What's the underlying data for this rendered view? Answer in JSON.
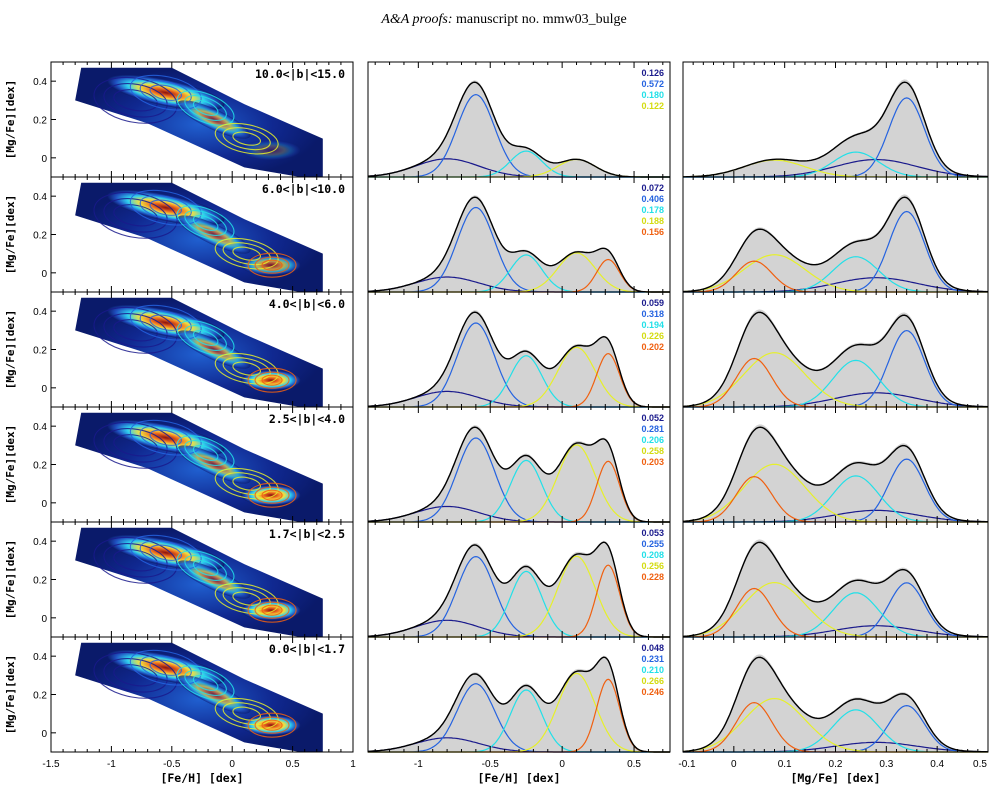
{
  "header": {
    "journal": "A&A proofs:",
    "manuscript": "manuscript no. mmw03_bulge"
  },
  "axes": {
    "left_xlabel": "[Fe/H] [dex]",
    "mid_xlabel": "[Fe/H] [dex]",
    "right_xlabel": "[Mg/Fe] [dex]",
    "left_ylabel": "[Mg/Fe][dex]",
    "left_xticks": [
      "-1.5",
      "-1",
      "-0.5",
      "0",
      "0.5",
      "1"
    ],
    "left_yticks": [
      "0",
      "0.2",
      "0.4"
    ],
    "mid_xticks": [
      "-1",
      "-0.5",
      "0",
      "0.5"
    ],
    "right_xticks": [
      "-0.1",
      "0",
      "0.1",
      "0.2",
      "0.3",
      "0.4",
      "0.5"
    ]
  },
  "colors": {
    "c1": "#1a1a8c",
    "c2": "#2563e0",
    "c3": "#22e0e8",
    "c4": "#e6f02a",
    "c5": "#f06010"
  },
  "rows": [
    {
      "label": "10.0<|b|<15.0",
      "fractions": [
        "0.126",
        "0.572",
        "0.180",
        "0.122"
      ]
    },
    {
      "label": "6.0<|b|<10.0",
      "fractions": [
        "0.072",
        "0.406",
        "0.178",
        "0.188",
        "0.156"
      ]
    },
    {
      "label": "4.0<|b|<6.0",
      "fractions": [
        "0.059",
        "0.318",
        "0.194",
        "0.226",
        "0.202"
      ]
    },
    {
      "label": "2.5<|b|<4.0",
      "fractions": [
        "0.052",
        "0.281",
        "0.206",
        "0.258",
        "0.203"
      ]
    },
    {
      "label": "1.7<|b|<2.5",
      "fractions": [
        "0.053",
        "0.255",
        "0.208",
        "0.256",
        "0.228"
      ]
    },
    {
      "label": "0.0<|b|<1.7",
      "fractions": [
        "0.048",
        "0.231",
        "0.210",
        "0.266",
        "0.246"
      ]
    }
  ]
}
